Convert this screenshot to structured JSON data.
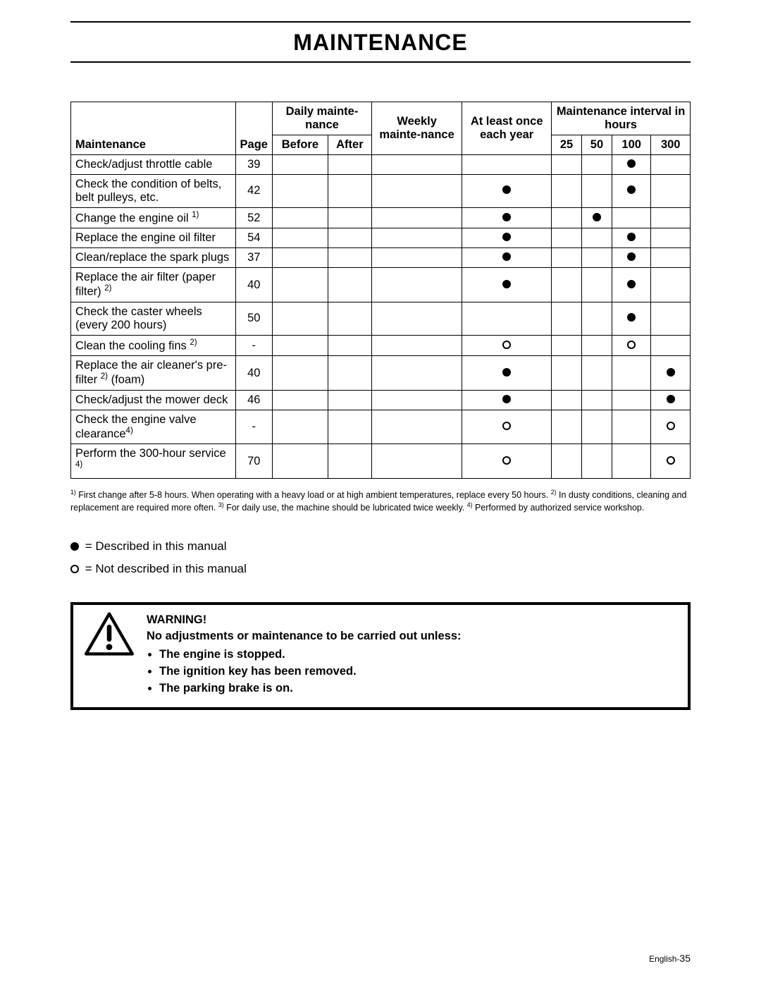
{
  "header": {
    "title": "MAINTENANCE"
  },
  "table": {
    "columns": {
      "maintenance": "Maintenance",
      "page": "Page",
      "daily": "Daily mainte-nance",
      "before": "Before",
      "after": "After",
      "weekly": "Weekly mainte-nance",
      "yearly": "At least once each year",
      "interval": "Maintenance interval in hours",
      "h25": "25",
      "h50": "50",
      "h100": "100",
      "h300": "300"
    },
    "rows": [
      {
        "task": "Check/adjust throttle cable",
        "sup": "",
        "tail": "",
        "page": "39",
        "yearly": "",
        "h25": "",
        "h50": "",
        "h100": "filled",
        "h300": ""
      },
      {
        "task": "Check the condition of belts, belt pulleys, etc.",
        "sup": "",
        "tail": "",
        "page": "42",
        "yearly": "filled",
        "h25": "",
        "h50": "",
        "h100": "filled",
        "h300": ""
      },
      {
        "task": "Change the engine oil ",
        "sup": "1)",
        "tail": "",
        "page": "52",
        "yearly": "filled",
        "h25": "",
        "h50": "filled",
        "h100": "",
        "h300": ""
      },
      {
        "task": "Replace the engine oil filter",
        "sup": "",
        "tail": "",
        "page": "54",
        "yearly": "filled",
        "h25": "",
        "h50": "",
        "h100": "filled",
        "h300": ""
      },
      {
        "task": "Clean/replace the spark plugs",
        "sup": "",
        "tail": "",
        "page": "37",
        "yearly": "filled",
        "h25": "",
        "h50": "",
        "h100": "filled",
        "h300": ""
      },
      {
        "task": "Replace the air filter (paper filter) ",
        "sup": "2)",
        "tail": "",
        "page": "40",
        "yearly": "filled",
        "h25": "",
        "h50": "",
        "h100": "filled",
        "h300": ""
      },
      {
        "task": "Check the caster wheels (every 200 hours)",
        "sup": "",
        "tail": "",
        "page": "50",
        "yearly": "",
        "h25": "",
        "h50": "",
        "h100": "filled",
        "h300": ""
      },
      {
        "task": "Clean the cooling fins ",
        "sup": "2)",
        "tail": "",
        "page": "-",
        "yearly": "open",
        "h25": "",
        "h50": "",
        "h100": "open",
        "h300": ""
      },
      {
        "task": "Replace the air cleaner's pre-filter ",
        "sup": "2)",
        "tail": " (foam)",
        "page": "40",
        "yearly": "filled",
        "h25": "",
        "h50": "",
        "h100": "",
        "h300": "filled"
      },
      {
        "task": "Check/adjust the mower deck",
        "sup": "",
        "tail": "",
        "page": "46",
        "yearly": "filled",
        "h25": "",
        "h50": "",
        "h100": "",
        "h300": "filled"
      },
      {
        "task": "Check the engine valve clearance",
        "sup": "4)",
        "tail": "",
        "page": "-",
        "yearly": "open",
        "h25": "",
        "h50": "",
        "h100": "",
        "h300": "open"
      },
      {
        "task": "Perform the 300-hour service ",
        "sup": "4)",
        "tail": "",
        "page": "70",
        "yearly": "open",
        "h25": "",
        "h50": "",
        "h100": "",
        "h300": "open"
      }
    ]
  },
  "footnotes": {
    "n1_sup": "1)",
    "n1": " First change after 5-8 hours. When operating with a heavy load or at high ambient temperatures, replace every 50 hours.  ",
    "n2_sup": "2)",
    "n2": " In dusty conditions, cleaning and replacement are required more often. ",
    "n3_sup": "3)",
    "n3": " For daily use, the machine should be lubricated twice weekly. ",
    "n4_sup": "4)",
    "n4": " Performed by authorized service workshop."
  },
  "legend": {
    "filled": " = Described in this manual",
    "open": " = Not described in this manual"
  },
  "warning": {
    "heading": "WARNING!",
    "intro": "No adjustments or maintenance to be carried out unless:",
    "items": [
      "The engine is stopped.",
      "The ignition key has been removed.",
      "The parking brake is on."
    ]
  },
  "pageNumber": {
    "lang": "English-",
    "num": "35"
  },
  "style": {
    "dot_filled_color": "#000000",
    "dot_open_border": "#000000",
    "rule_color": "#000000",
    "background": "#ffffff"
  }
}
